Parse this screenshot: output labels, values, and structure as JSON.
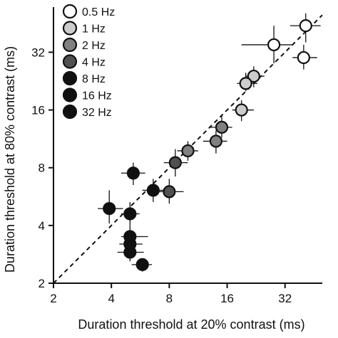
{
  "chart_data": {
    "type": "scatter",
    "xlabel": "Duration threshold at 20% contrast (ms)",
    "ylabel": "Duration threshold at 80% contrast (ms)",
    "x_scale": "log2",
    "y_scale": "log2",
    "xlim": [
      2,
      50
    ],
    "ylim": [
      2,
      55
    ],
    "x_ticks": [
      2,
      4,
      8,
      16,
      32
    ],
    "y_ticks": [
      2,
      4,
      8,
      16,
      32
    ],
    "grid": false,
    "identity_line": true,
    "legend_position": "top-left",
    "series": [
      {
        "name": "0.5 Hz",
        "color": "#ffffff",
        "points": [
          {
            "x": 41,
            "y": 44,
            "xerr": [
              34,
              49
            ],
            "yerr": [
              36,
              51
            ]
          },
          {
            "x": 28,
            "y": 35,
            "xerr": [
              19,
              35
            ],
            "yerr": [
              28,
              44
            ]
          },
          {
            "x": 40,
            "y": 30,
            "xerr": [
              35,
              47
            ],
            "yerr": [
              26,
              35
            ]
          }
        ]
      },
      {
        "name": "1 Hz",
        "color": "#cccccc",
        "points": [
          {
            "x": 22,
            "y": 24,
            "xerr": [
              20,
              25
            ],
            "yerr": [
              21,
              27
            ]
          },
          {
            "x": 20,
            "y": 22,
            "xerr": [
              18,
              23
            ],
            "yerr": [
              20,
              25
            ]
          },
          {
            "x": 19,
            "y": 16,
            "xerr": [
              17,
              22
            ],
            "yerr": [
              14,
              18
            ]
          }
        ]
      },
      {
        "name": "2 Hz",
        "color": "#808080",
        "points": [
          {
            "x": 15,
            "y": 13,
            "xerr": [
              13,
              17
            ],
            "yerr": [
              11.5,
              15
            ]
          },
          {
            "x": 14,
            "y": 11,
            "xerr": [
              12,
              16
            ],
            "yerr": [
              9.5,
              12.5
            ]
          },
          {
            "x": 10,
            "y": 9.8,
            "xerr": [
              8.8,
              11.3
            ],
            "yerr": [
              8.7,
              11
            ]
          }
        ]
      },
      {
        "name": "4 Hz",
        "color": "#505050",
        "points": [
          {
            "x": 8.6,
            "y": 8.5,
            "xerr": [
              7.5,
              10
            ],
            "yerr": [
              7.2,
              10
            ]
          },
          {
            "x": 8.0,
            "y": 6.0,
            "xerr": [
              6.8,
              9.5
            ],
            "yerr": [
              5.2,
              7
            ]
          }
        ]
      },
      {
        "name": "8 Hz",
        "color": "#101010",
        "points": [
          {
            "x": 5.2,
            "y": 7.5,
            "xerr": [
              4.5,
              6
            ],
            "yerr": [
              6.5,
              8.5
            ]
          },
          {
            "x": 6.6,
            "y": 6.1,
            "xerr": [
              5.8,
              7.6
            ],
            "yerr": [
              5.3,
              7
            ]
          }
        ]
      },
      {
        "name": "16 Hz",
        "color": "#101010",
        "points": [
          {
            "x": 3.9,
            "y": 4.9,
            "xerr": [
              3.4,
              4.6
            ],
            "yerr": [
              4.1,
              6.1
            ]
          },
          {
            "x": 5.0,
            "y": 4.6,
            "xerr": [
              4.5,
              5.6
            ],
            "yerr": [
              4.0,
              5.3
            ]
          },
          {
            "x": 5.0,
            "y": 3.5,
            "xerr": [
              4.5,
              6.2
            ],
            "yerr": [
              3.1,
              4.0
            ]
          },
          {
            "x": 5.0,
            "y": 3.2,
            "xerr": [
              4.4,
              5.8
            ],
            "yerr": [
              2.9,
              3.5
            ]
          }
        ]
      },
      {
        "name": "32 Hz",
        "color": "#101010",
        "points": [
          {
            "x": 5.0,
            "y": 2.9,
            "xerr": [
              4.3,
              5.9
            ],
            "yerr": [
              2.6,
              3.2
            ]
          },
          {
            "x": 5.8,
            "y": 2.5,
            "xerr": [
              5.1,
              6.5
            ],
            "yerr": [
              2.3,
              2.7
            ]
          }
        ]
      }
    ]
  }
}
